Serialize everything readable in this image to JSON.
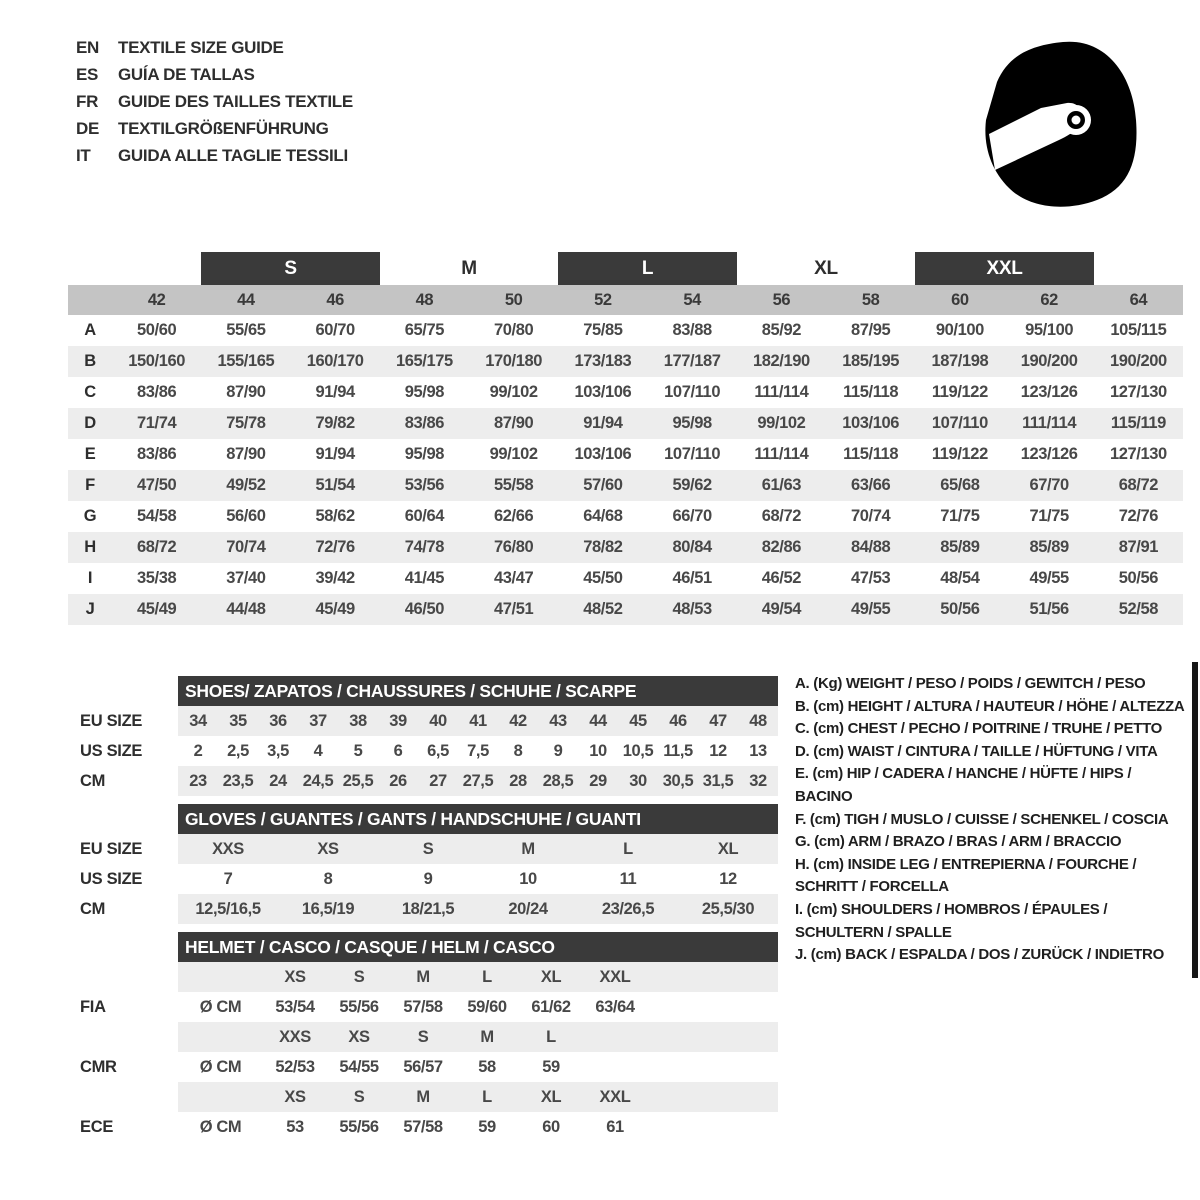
{
  "header": {
    "languages": [
      {
        "code": "EN",
        "title": "TEXTILE SIZE GUIDE"
      },
      {
        "code": "ES",
        "title": "GUÍA DE TALLAS"
      },
      {
        "code": "FR",
        "title": "GUIDE DES TAILLES TEXTILE"
      },
      {
        "code": "DE",
        "title": "TEXTILGRÖßENFÜHRUNG"
      },
      {
        "code": "IT",
        "title": "GUIDA ALLE TAGLIE TESSILI"
      }
    ],
    "logo_icon": "racing-helmet-icon"
  },
  "main_table": {
    "size_groups": [
      {
        "label": "S",
        "bar": true
      },
      {
        "label": "M",
        "bar": false
      },
      {
        "label": "L",
        "bar": true
      },
      {
        "label": "XL",
        "bar": false
      },
      {
        "label": "XXL",
        "bar": true
      }
    ],
    "numeric_sizes": [
      "42",
      "44",
      "46",
      "48",
      "50",
      "52",
      "54",
      "56",
      "58",
      "60",
      "62",
      "64"
    ],
    "rows": [
      {
        "letter": "A",
        "values": [
          "50/60",
          "55/65",
          "60/70",
          "65/75",
          "70/80",
          "75/85",
          "83/88",
          "85/92",
          "87/95",
          "90/100",
          "95/100",
          "105/115"
        ]
      },
      {
        "letter": "B",
        "values": [
          "150/160",
          "155/165",
          "160/170",
          "165/175",
          "170/180",
          "173/183",
          "177/187",
          "182/190",
          "185/195",
          "187/198",
          "190/200",
          "190/200"
        ]
      },
      {
        "letter": "C",
        "values": [
          "83/86",
          "87/90",
          "91/94",
          "95/98",
          "99/102",
          "103/106",
          "107/110",
          "111/114",
          "115/118",
          "119/122",
          "123/126",
          "127/130"
        ]
      },
      {
        "letter": "D",
        "values": [
          "71/74",
          "75/78",
          "79/82",
          "83/86",
          "87/90",
          "91/94",
          "95/98",
          "99/102",
          "103/106",
          "107/110",
          "111/114",
          "115/119"
        ]
      },
      {
        "letter": "E",
        "values": [
          "83/86",
          "87/90",
          "91/94",
          "95/98",
          "99/102",
          "103/106",
          "107/110",
          "111/114",
          "115/118",
          "119/122",
          "123/126",
          "127/130"
        ]
      },
      {
        "letter": "F",
        "values": [
          "47/50",
          "49/52",
          "51/54",
          "53/56",
          "55/58",
          "57/60",
          "59/62",
          "61/63",
          "63/66",
          "65/68",
          "67/70",
          "68/72"
        ]
      },
      {
        "letter": "G",
        "values": [
          "54/58",
          "56/60",
          "58/62",
          "60/64",
          "62/66",
          "64/68",
          "66/70",
          "68/72",
          "70/74",
          "71/75",
          "71/75",
          "72/76"
        ]
      },
      {
        "letter": "H",
        "values": [
          "68/72",
          "70/74",
          "72/76",
          "74/78",
          "76/80",
          "78/82",
          "80/84",
          "82/86",
          "84/88",
          "85/89",
          "85/89",
          "87/91"
        ]
      },
      {
        "letter": "I",
        "values": [
          "35/38",
          "37/40",
          "39/42",
          "41/45",
          "43/47",
          "45/50",
          "46/51",
          "46/52",
          "47/53",
          "48/54",
          "49/55",
          "50/56"
        ]
      },
      {
        "letter": "J",
        "values": [
          "45/49",
          "44/48",
          "45/49",
          "46/50",
          "47/51",
          "48/52",
          "48/53",
          "49/54",
          "49/55",
          "50/56",
          "51/56",
          "52/58"
        ]
      }
    ]
  },
  "shoes_table": {
    "title": "SHOES/ ZAPATOS / CHAUSSURES / SCHUHE / SCARPE",
    "rows": [
      {
        "label": "EU SIZE",
        "values": [
          "34",
          "35",
          "36",
          "37",
          "38",
          "39",
          "40",
          "41",
          "42",
          "43",
          "44",
          "45",
          "46",
          "47",
          "48"
        ]
      },
      {
        "label": "US SIZE",
        "values": [
          "2",
          "2,5",
          "3,5",
          "4",
          "5",
          "6",
          "6,5",
          "7,5",
          "8",
          "9",
          "10",
          "10,5",
          "11,5",
          "12",
          "13"
        ]
      },
      {
        "label": "CM",
        "values": [
          "23",
          "23,5",
          "24",
          "24,5",
          "25,5",
          "26",
          "27",
          "27,5",
          "28",
          "28,5",
          "29",
          "30",
          "30,5",
          "31,5",
          "32"
        ]
      }
    ]
  },
  "gloves_table": {
    "title": "GLOVES / GUANTES / GANTS / HANDSCHUHE / GUANTI",
    "rows": [
      {
        "label": "EU SIZE",
        "values": [
          "XXS",
          "XS",
          "S",
          "M",
          "L",
          "XL"
        ]
      },
      {
        "label": "US SIZE",
        "values": [
          "7",
          "8",
          "9",
          "10",
          "11",
          "12"
        ]
      },
      {
        "label": "CM",
        "values": [
          "12,5/16,5",
          "16,5/19",
          "18/21,5",
          "20/24",
          "23/26,5",
          "25,5/30"
        ]
      }
    ]
  },
  "helmet_table": {
    "title": "HELMET / CASCO / CASQUE / HELM / CASCO",
    "diameter_label": "Ø CM",
    "sections": [
      {
        "org": "FIA",
        "sizes": [
          "XS",
          "S",
          "M",
          "L",
          "XL",
          "XXL"
        ],
        "values": [
          "53/54",
          "55/56",
          "57/58",
          "59/60",
          "61/62",
          "63/64"
        ]
      },
      {
        "org": "CMR",
        "sizes": [
          "XXS",
          "XS",
          "S",
          "M",
          "L"
        ],
        "values": [
          "52/53",
          "54/55",
          "56/57",
          "58",
          "59"
        ]
      },
      {
        "org": "ECE",
        "sizes": [
          "XS",
          "S",
          "M",
          "L",
          "XL",
          "XXL"
        ],
        "values": [
          "53",
          "55/56",
          "57/58",
          "59",
          "60",
          "61"
        ]
      }
    ]
  },
  "measurement_legend": {
    "items": [
      {
        "key": "A.",
        "unit": "(Kg)",
        "text": "WEIGHT / PESO / POIDS / GEWITCH / PESO"
      },
      {
        "key": "B.",
        "unit": "(cm)",
        "text": "HEIGHT / ALTURA / HAUTEUR / HÖHE / ALTEZZA"
      },
      {
        "key": "C.",
        "unit": "(cm)",
        "text": "CHEST / PECHO / POITRINE / TRUHE / PETTO"
      },
      {
        "key": "D.",
        "unit": "(cm)",
        "text": "WAIST / CINTURA / TAILLE / HÜFTUNG / VITA"
      },
      {
        "key": "E.",
        "unit": "(cm)",
        "text": "HIP / CADERA / HANCHE / HÜFTE / HIPS /  BACINO"
      },
      {
        "key": "F.",
        "unit": "(cm)",
        "text": "TIGH / MUSLO / CUISSE / SCHENKEL / COSCIA"
      },
      {
        "key": "G.",
        "unit": "(cm)",
        "text": "ARM  / BRAZO / BRAS / ARM / BRACCIO"
      },
      {
        "key": "H.",
        "unit": "(cm)",
        "text": "INSIDE LEG / ENTREPIERNA / FOURCHE / SCHRITT / FORCELLA"
      },
      {
        "key": "I.",
        "unit": "(cm)",
        "text": "SHOULDERS / HOMBROS / ÉPAULES / SCHULTERN / SPALLE"
      },
      {
        "key": "J.",
        "unit": "(cm)",
        "text": "BACK / ESPALDA / DOS / ZURÜCK / INDIETRO"
      }
    ]
  },
  "colors": {
    "header_bar": "#3a3a3a",
    "numeric_band": "#c4c4c4",
    "row_stripe": "#ededed",
    "text_dark": "#2e2e2e",
    "text_value": "#484848",
    "white": "#ffffff"
  }
}
